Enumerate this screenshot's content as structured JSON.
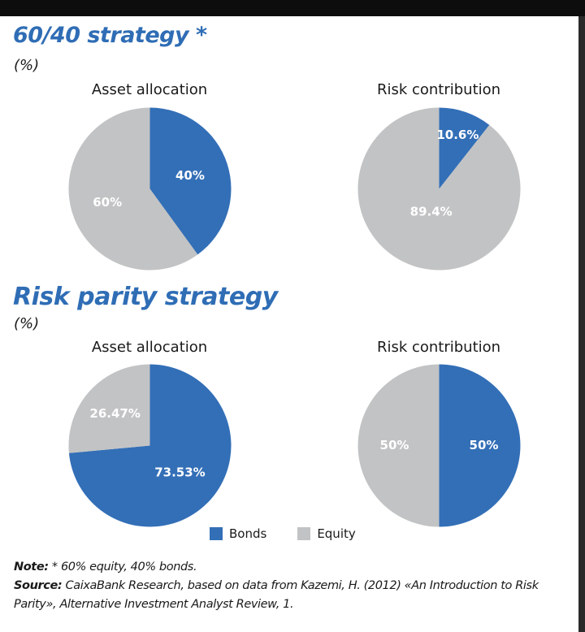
{
  "sections": [
    {
      "title": "60/40 strategy *",
      "unit": "(%)"
    },
    {
      "title": "Risk parity strategy",
      "unit": "(%)"
    }
  ],
  "colors": {
    "bonds": "#336fb7",
    "equity": "#c2c3c4",
    "title": "#2f6db5"
  },
  "chart_data": [
    {
      "type": "pie",
      "title": "Asset allocation",
      "categories": [
        "Bonds",
        "Equity"
      ],
      "values": [
        40,
        60
      ],
      "labels": [
        "40%",
        "60%"
      ]
    },
    {
      "type": "pie",
      "title": "Risk contribution",
      "categories": [
        "Bonds",
        "Equity"
      ],
      "values": [
        10.6,
        89.4
      ],
      "labels": [
        "10.6%",
        "89.4%"
      ]
    },
    {
      "type": "pie",
      "title": "Asset allocation",
      "categories": [
        "Bonds",
        "Equity"
      ],
      "values": [
        73.53,
        26.47
      ],
      "labels": [
        "73.53%",
        "26.47%"
      ]
    },
    {
      "type": "pie",
      "title": "Risk contribution",
      "categories": [
        "Bonds",
        "Equity"
      ],
      "values": [
        50,
        50
      ],
      "labels": [
        "50%",
        "50%"
      ]
    }
  ],
  "legend": [
    {
      "label": "Bonds",
      "color": "#336fb7"
    },
    {
      "label": "Equity",
      "color": "#c2c3c4"
    }
  ],
  "notes": {
    "note_label": "Note:",
    "note_text": " * 60% equity, 40% bonds.",
    "source_label": "Source:",
    "source_text": " CaixaBank Research, based on data from Kazemi, H. (2012) «An Introduction to Risk Parity», Alternative Investment Analyst Review, 1."
  }
}
